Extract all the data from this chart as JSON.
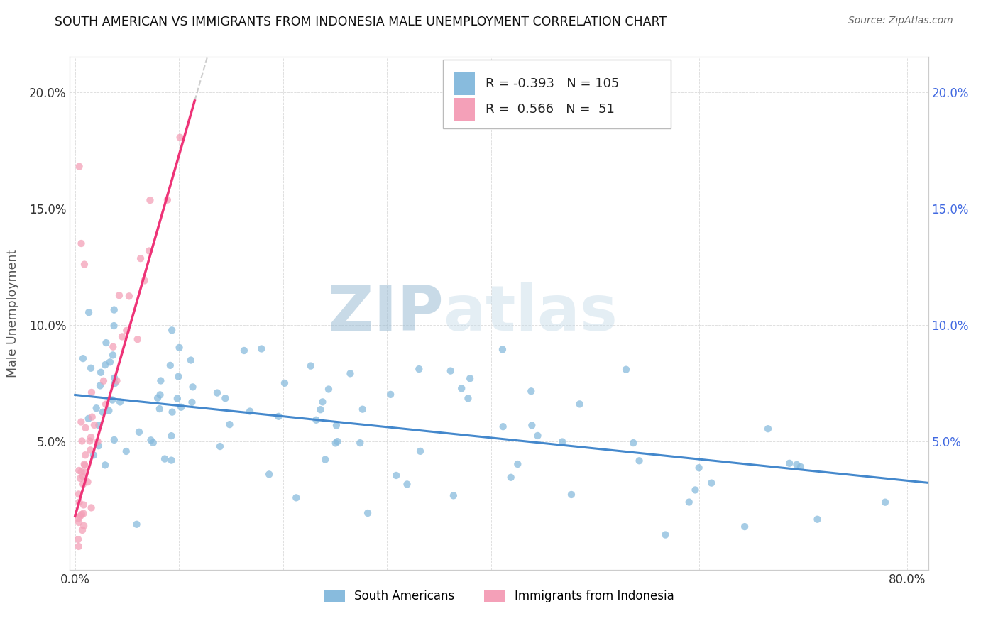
{
  "title": "SOUTH AMERICAN VS IMMIGRANTS FROM INDONESIA MALE UNEMPLOYMENT CORRELATION CHART",
  "source": "Source: ZipAtlas.com",
  "ylabel": "Male Unemployment",
  "xlim": [
    -0.005,
    0.82
  ],
  "ylim": [
    -0.005,
    0.215
  ],
  "yticks": [
    0.05,
    0.1,
    0.15,
    0.2
  ],
  "ytick_labels": [
    "5.0%",
    "10.0%",
    "15.0%",
    "20.0%"
  ],
  "xticks": [
    0.0,
    0.1,
    0.2,
    0.3,
    0.4,
    0.5,
    0.6,
    0.7,
    0.8
  ],
  "xtick_labels": [
    "0.0%",
    "",
    "",
    "",
    "",
    "",
    "",
    "",
    "80.0%"
  ],
  "blue_color": "#88bbdd",
  "pink_color": "#f4a0b8",
  "blue_line_color": "#4488cc",
  "pink_line_color": "#ee3377",
  "legend_R1": "-0.393",
  "legend_N1": "105",
  "legend_R2": "0.566",
  "legend_N2": "51",
  "right_y_color": "#4169e1",
  "title_color": "#111111",
  "source_color": "#666666",
  "grid_color": "#dddddd"
}
